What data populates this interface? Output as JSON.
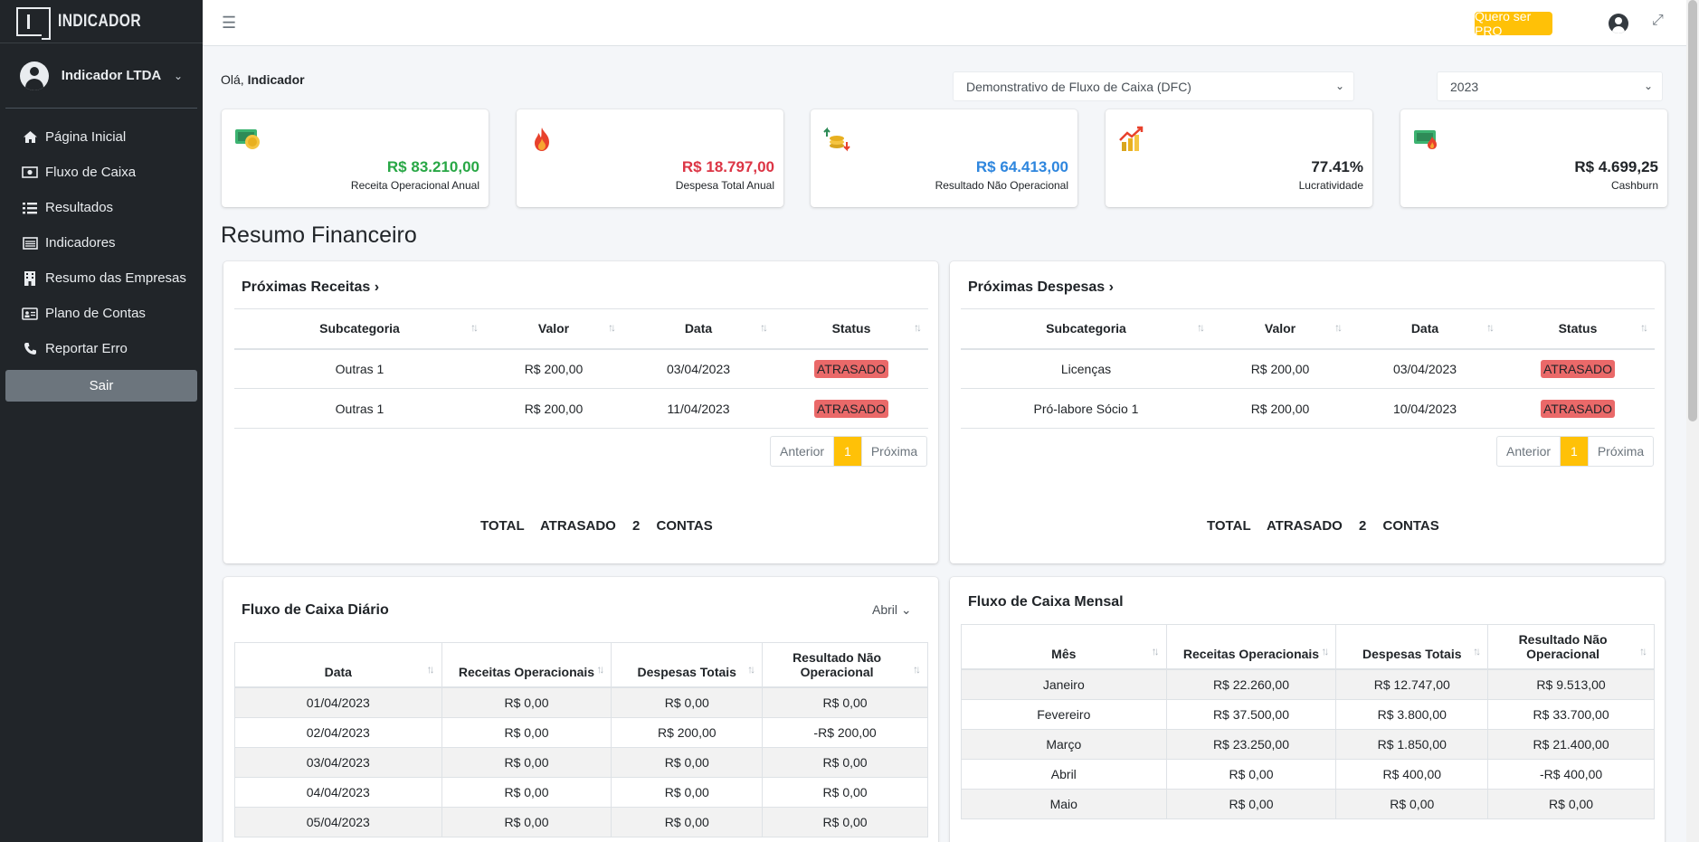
{
  "brand": {
    "name": "INDICADOR"
  },
  "sidebar": {
    "company": "Indicador LTDA",
    "items": [
      {
        "label": "Página Inicial",
        "icon": "home-icon"
      },
      {
        "label": "Fluxo de Caixa",
        "icon": "money-icon"
      },
      {
        "label": "Resultados",
        "icon": "list-icon"
      },
      {
        "label": "Indicadores",
        "icon": "table-icon"
      },
      {
        "label": "Resumo das Empresas",
        "icon": "building-icon"
      },
      {
        "label": "Plano de Contas",
        "icon": "id-card-icon"
      },
      {
        "label": "Reportar Erro",
        "icon": "phone-icon"
      }
    ],
    "logout": "Sair"
  },
  "topbar": {
    "pro_button": "Quero ser PRO"
  },
  "greeting": {
    "prefix": "Olá, ",
    "name": "Indicador"
  },
  "filters": {
    "report": "Demonstrativo de Fluxo de Caixa (DFC)",
    "year": "2023"
  },
  "kpis": [
    {
      "value": "R$ 83.210,00",
      "label": "Receita Operacional Anual",
      "color": "#28a745"
    },
    {
      "value": "R$ 18.797,00",
      "label": "Despesa Total Anual",
      "color": "#dc3545"
    },
    {
      "value": "R$ 64.413,00",
      "label": "Resultado Não Operacional",
      "color": "#2e86de"
    },
    {
      "value": "77.41%",
      "label": "Lucratividade",
      "color": "#212529"
    },
    {
      "value": "R$ 4.699,25",
      "label": "Cashburn",
      "color": "#212529"
    }
  ],
  "section_title": "Resumo Financeiro",
  "receitas": {
    "title": "Próximas Receitas",
    "columns": [
      "Subcategoria",
      "Valor",
      "Data",
      "Status"
    ],
    "rows": [
      [
        "Outras 1",
        "R$ 200,00",
        "03/04/2023",
        "ATRASADO"
      ],
      [
        "Outras 1",
        "R$ 200,00",
        "11/04/2023",
        "ATRASADO"
      ]
    ],
    "pager": {
      "prev": "Anterior",
      "page": "1",
      "next": "Próxima"
    },
    "total": {
      "label": "TOTAL ATRASADO",
      "count": "2",
      "unit": "CONTAS"
    }
  },
  "despesas": {
    "title": "Próximas Despesas",
    "columns": [
      "Subcategoria",
      "Valor",
      "Data",
      "Status"
    ],
    "rows": [
      [
        "Licenças",
        "R$ 200,00",
        "03/04/2023",
        "ATRASADO"
      ],
      [
        "Pró-labore Sócio 1",
        "R$ 200,00",
        "10/04/2023",
        "ATRASADO"
      ]
    ],
    "pager": {
      "prev": "Anterior",
      "page": "1",
      "next": "Próxima"
    },
    "total": {
      "label": "TOTAL ATRASADO",
      "count": "2",
      "unit": "CONTAS"
    }
  },
  "diario": {
    "title": "Fluxo de Caixa Diário",
    "month": "Abril",
    "columns": [
      "Data",
      "Receitas Operacionais",
      "Despesas Totais",
      "Resultado Não Operacional"
    ],
    "rows": [
      [
        "01/04/2023",
        "R$ 0,00",
        "R$ 0,00",
        "R$ 0,00"
      ],
      [
        "02/04/2023",
        "R$ 0,00",
        "R$ 200,00",
        "-R$ 200,00"
      ],
      [
        "03/04/2023",
        "R$ 0,00",
        "R$ 0,00",
        "R$ 0,00"
      ],
      [
        "04/04/2023",
        "R$ 0,00",
        "R$ 0,00",
        "R$ 0,00"
      ],
      [
        "05/04/2023",
        "R$ 0,00",
        "R$ 0,00",
        "R$ 0,00"
      ]
    ]
  },
  "mensal": {
    "title": "Fluxo de Caixa Mensal",
    "columns": [
      "Mês",
      "Receitas Operacionais",
      "Despesas Totais",
      "Resultado Não Operacional"
    ],
    "rows": [
      [
        "Janeiro",
        "R$ 22.260,00",
        "R$ 12.747,00",
        "R$ 9.513,00"
      ],
      [
        "Fevereiro",
        "R$ 37.500,00",
        "R$ 3.800,00",
        "R$ 33.700,00"
      ],
      [
        "Março",
        "R$ 23.250,00",
        "R$ 1.850,00",
        "R$ 21.400,00"
      ],
      [
        "Abril",
        "R$ 0,00",
        "R$ 400,00",
        "-R$ 400,00"
      ],
      [
        "Maio",
        "R$ 0,00",
        "R$ 0,00",
        "R$ 0,00"
      ]
    ]
  }
}
